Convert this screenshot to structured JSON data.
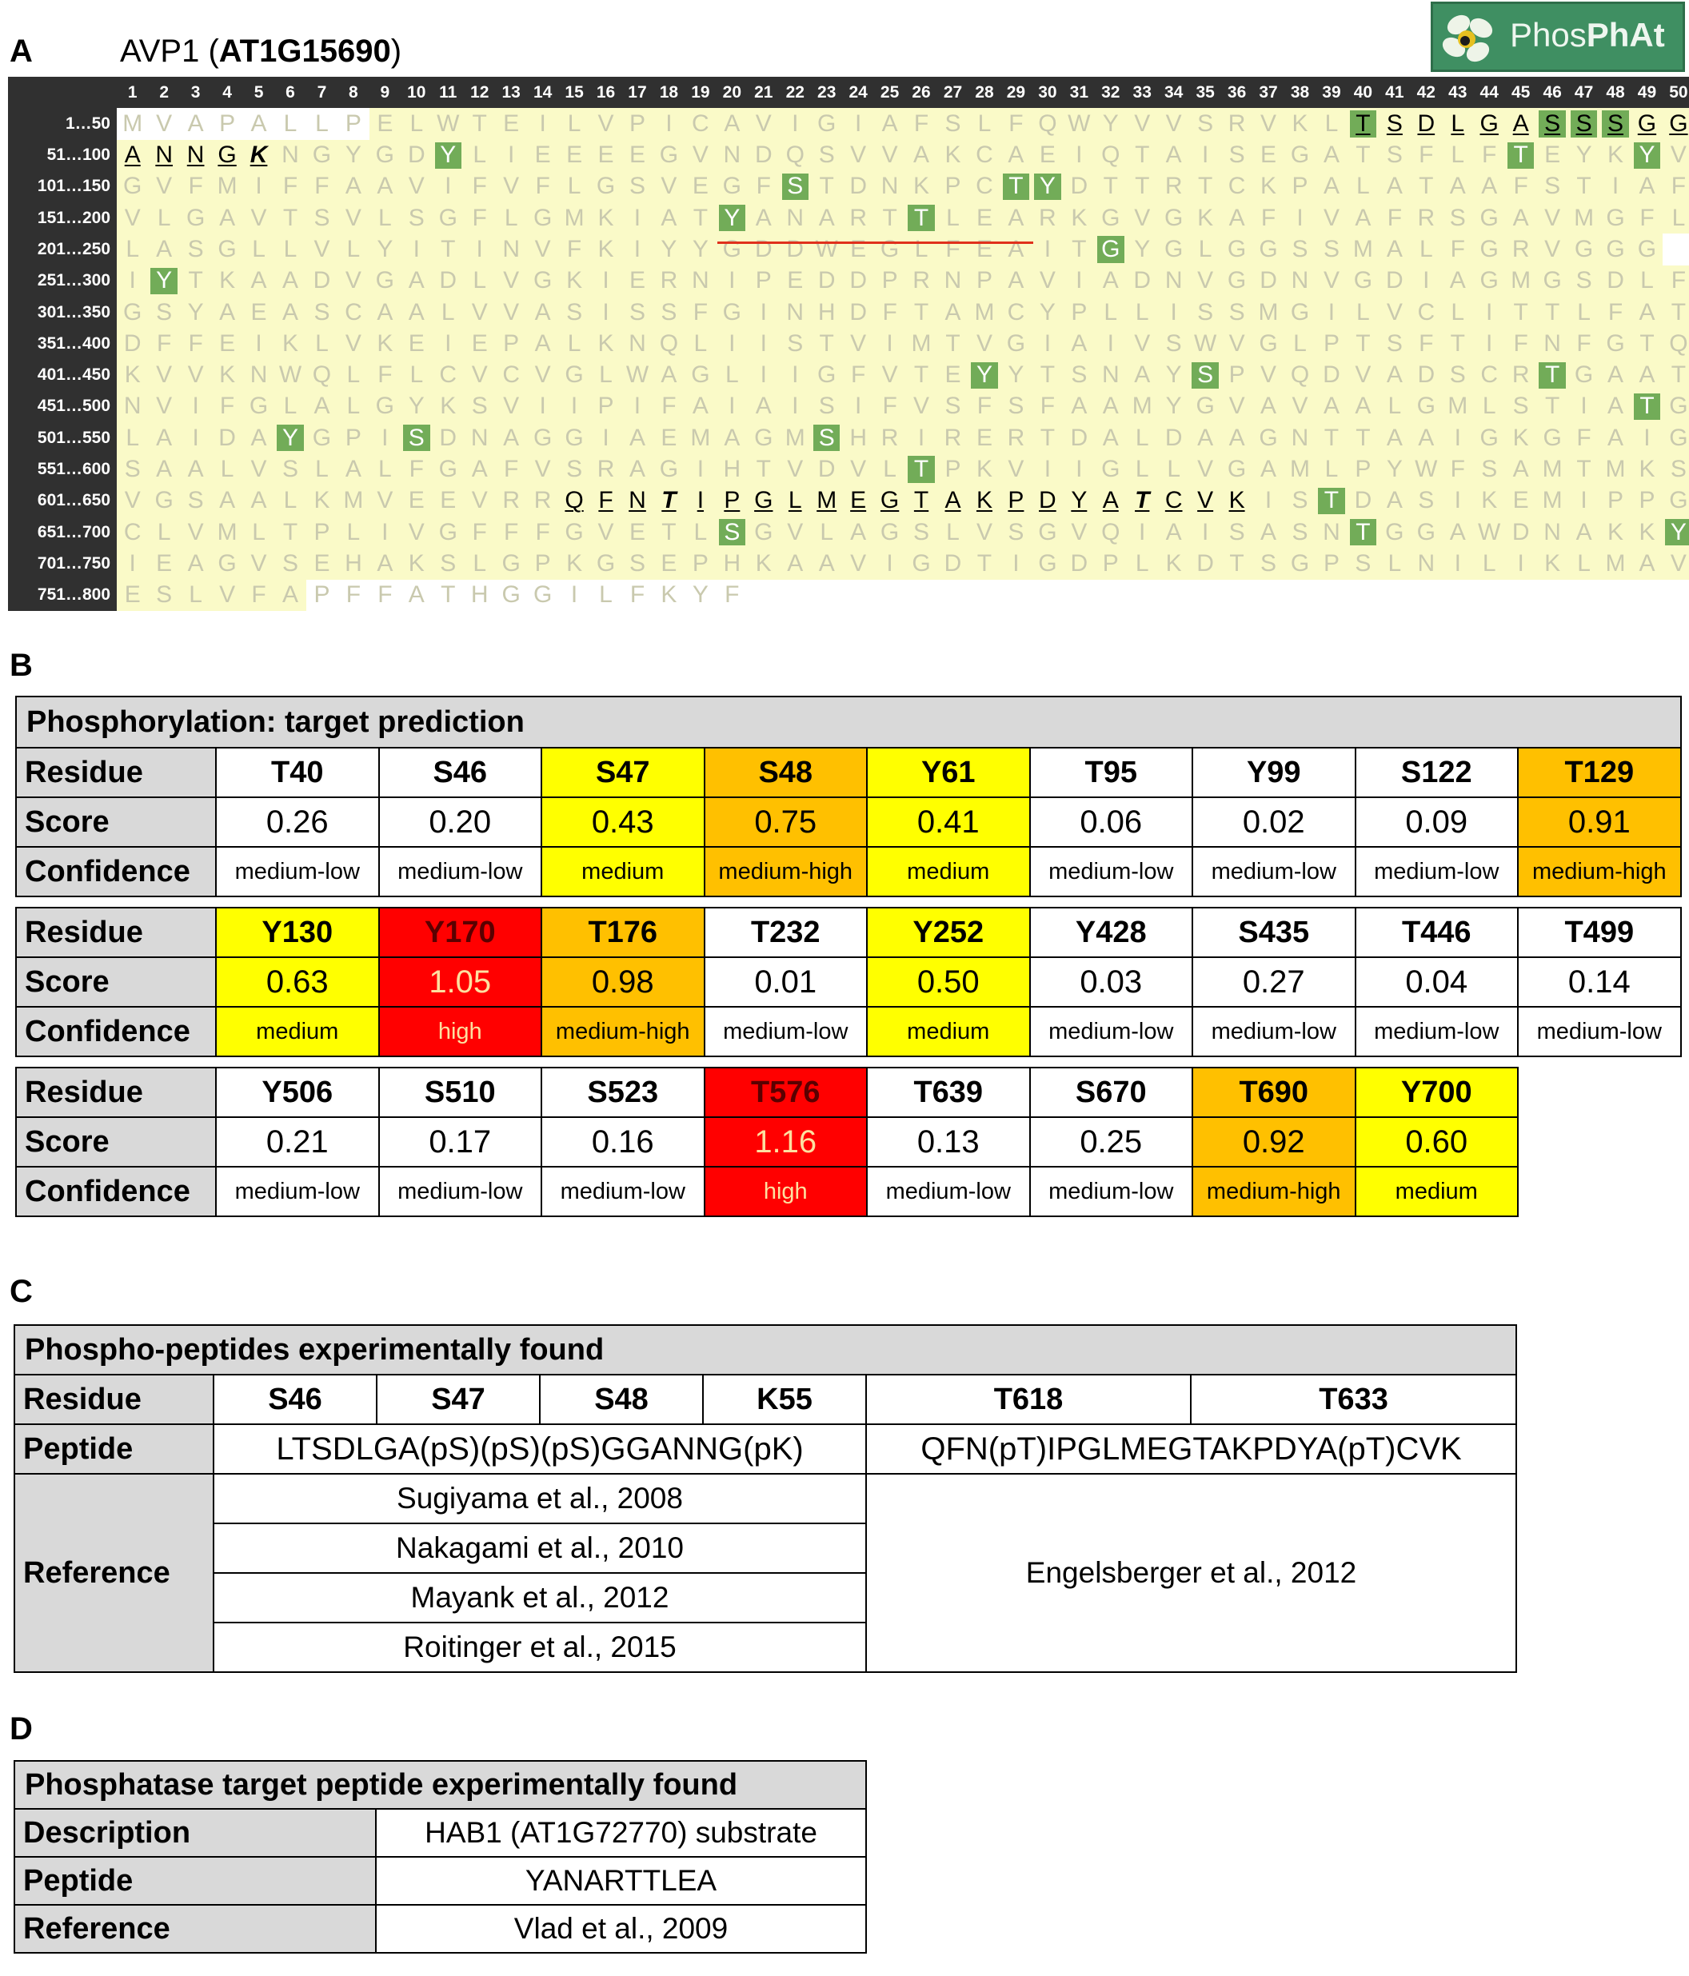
{
  "panels": {
    "a": "A",
    "b": "B",
    "c": "C",
    "d": "D"
  },
  "protein": {
    "name": "AVP1",
    "locus": "AT1G15690"
  },
  "logo": {
    "text_light": "Phos",
    "text_bold": "PhAt"
  },
  "colors": {
    "sequence_region": "#fafac8",
    "phosphosite": "#72ac58",
    "prediction_medium": "#ffff00",
    "prediction_medium_high": "#ffc000",
    "prediction_high": "#ff0000"
  },
  "sequence": {
    "positions": [
      "1",
      "2",
      "3",
      "4",
      "5",
      "6",
      "7",
      "8",
      "9",
      "10",
      "11",
      "12",
      "13",
      "14",
      "15",
      "16",
      "17",
      "18",
      "19",
      "20",
      "21",
      "22",
      "23",
      "24",
      "25",
      "26",
      "27",
      "28",
      "29",
      "30",
      "31",
      "32",
      "33",
      "34",
      "35",
      "36",
      "37",
      "38",
      "39",
      "40",
      "41",
      "42",
      "43",
      "44",
      "45",
      "46",
      "47",
      "48",
      "49",
      "50"
    ],
    "rows": [
      {
        "label": "1…50",
        "seq": "MVAPALLPELWTEILVPICAVIGIAFSLFQWYVVSRVKLTSDLGASSSGG"
      },
      {
        "label": "51…100",
        "seq": "ANNGKNGYGDYLIEEEEGVNDQSVVAKCAEIQTAISEGATSFLFTEYKYV"
      },
      {
        "label": "101…150",
        "seq": "GVFMIFFAAVIFVFLGSVEGFSTDNKPCTYDTTRTCKPALATAAFSTIAF"
      },
      {
        "label": "151…200",
        "seq": "VLGAVTSVLSGFLGMKIATYANARTTLEARKGVGKAFIVAFRSGAVMGFL"
      },
      {
        "label": "201…250",
        "seq": "LASGLLVLYITINVFKIYYGDDWEGLFEAITGYGLGGSSMALFGRVGGG"
      },
      {
        "label": "251…300",
        "seq": "IYTKAADVGADLVGKIERNIPEDDPRNPAVIADNVGDNVGDIAGMGSDLF"
      },
      {
        "label": "301…350",
        "seq": "GSYAEASCAALVVASISSFGINHDFTAMCYPLLISSMGILVCLITTLFAT"
      },
      {
        "label": "351…400",
        "seq": "DFFEIKLVKEIEPALKNQLIISTVIMTVGIAIVSWVGLPTSFTIFNFGTQ"
      },
      {
        "label": "401…450",
        "seq": "KVVKNWQLFLCVCVGLWAGLIIGFVTEYYTSNAYSPVQDVADSCRTGAAT"
      },
      {
        "label": "451…500",
        "seq": "NVIFGLALGYKSVIIPIFAIAISIFVSFSFAAMYGVAVAALGMLSTIATG"
      },
      {
        "label": "501…550",
        "seq": "LAIDAYGPISDNAGGIAEMAGMSHRIRERTDALDAAGNTTAAIGKGFAIG"
      },
      {
        "label": "551…600",
        "seq": "SAALVSLALFGAFVSRAGIHTVDVLTPKVIIGLLVGAMLPYWFSAMTMKS"
      },
      {
        "label": "601…650",
        "seq": "VGSAALKMVEEVRRQFNTIPGLMEGTAKPDYATCVKISTDASIKEMIPPG"
      },
      {
        "label": "651…700",
        "seq": "CLVMLTPLIVGFFFGVETLSGVLAGSLVSGVQIAISASNTGGAWDNAKKY"
      },
      {
        "label": "701…750",
        "seq": "IEAGVSEHAKSLGPKGSEPHKAAVIGDTIGDPLKDTSGPSLNILIKLMAV"
      },
      {
        "label": "751…800",
        "seq": "ESLVFAPFFATHGGILFKYF"
      }
    ]
  },
  "prediction": {
    "title": "Phosphorylation: target prediction",
    "row_labels": [
      "Residue",
      "Score",
      "Confidence"
    ],
    "blocks": [
      [
        {
          "residue": "T40",
          "score": "0.26",
          "confidence": "medium-low",
          "level": "n"
        },
        {
          "residue": "S46",
          "score": "0.20",
          "confidence": "medium-low",
          "level": "n"
        },
        {
          "residue": "S47",
          "score": "0.43",
          "confidence": "medium",
          "level": "y"
        },
        {
          "residue": "S48",
          "score": "0.75",
          "confidence": "medium-high",
          "level": "o"
        },
        {
          "residue": "Y61",
          "score": "0.41",
          "confidence": "medium",
          "level": "y"
        },
        {
          "residue": "T95",
          "score": "0.06",
          "confidence": "medium-low",
          "level": "n"
        },
        {
          "residue": "Y99",
          "score": "0.02",
          "confidence": "medium-low",
          "level": "n"
        },
        {
          "residue": "S122",
          "score": "0.09",
          "confidence": "medium-low",
          "level": "n"
        },
        {
          "residue": "T129",
          "score": "0.91",
          "confidence": "medium-high",
          "level": "o"
        }
      ],
      [
        {
          "residue": "Y130",
          "score": "0.63",
          "confidence": "medium",
          "level": "y"
        },
        {
          "residue": "Y170",
          "score": "1.05",
          "confidence": "high",
          "level": "r"
        },
        {
          "residue": "T176",
          "score": "0.98",
          "confidence": "medium-high",
          "level": "o"
        },
        {
          "residue": "T232",
          "score": "0.01",
          "confidence": "medium-low",
          "level": "n"
        },
        {
          "residue": "Y252",
          "score": "0.50",
          "confidence": "medium",
          "level": "y"
        },
        {
          "residue": "Y428",
          "score": "0.03",
          "confidence": "medium-low",
          "level": "n"
        },
        {
          "residue": "S435",
          "score": "0.27",
          "confidence": "medium-low",
          "level": "n"
        },
        {
          "residue": "T446",
          "score": "0.04",
          "confidence": "medium-low",
          "level": "n"
        },
        {
          "residue": "T499",
          "score": "0.14",
          "confidence": "medium-low",
          "level": "n"
        }
      ],
      [
        {
          "residue": "Y506",
          "score": "0.21",
          "confidence": "medium-low",
          "level": "n"
        },
        {
          "residue": "S510",
          "score": "0.17",
          "confidence": "medium-low",
          "level": "n"
        },
        {
          "residue": "S523",
          "score": "0.16",
          "confidence": "medium-low",
          "level": "n"
        },
        {
          "residue": "T576",
          "score": "1.16",
          "confidence": "high",
          "level": "r"
        },
        {
          "residue": "T639",
          "score": "0.13",
          "confidence": "medium-low",
          "level": "n"
        },
        {
          "residue": "S670",
          "score": "0.25",
          "confidence": "medium-low",
          "level": "n"
        },
        {
          "residue": "T690",
          "score": "0.92",
          "confidence": "medium-high",
          "level": "o"
        },
        {
          "residue": "Y700",
          "score": "0.60",
          "confidence": "medium",
          "level": "y"
        }
      ]
    ]
  },
  "experimental": {
    "title": "Phospho-peptides experimentally found",
    "row_labels": {
      "residue": "Residue",
      "peptide": "Peptide",
      "reference": "Reference"
    },
    "residues": [
      "S46",
      "S47",
      "S48",
      "K55",
      "T618",
      "T633"
    ],
    "peptide1": "LTSDLGA(pS)(pS)(pS)GGANNG(pK)",
    "peptide2": "QFN(pT)IPGLMEGTAKPDYA(pT)CVK",
    "refs1": [
      "Sugiyama et al., 2008",
      "Nakagami et al., 2010",
      "Mayank et al., 2012",
      "Roitinger et al., 2015"
    ],
    "ref2": "Engelsberger et al., 2012"
  },
  "phosphatase": {
    "title": "Phosphatase target peptide experimentally found",
    "rows": [
      {
        "label": "Description",
        "value": "HAB1 (AT1G72770) substrate"
      },
      {
        "label": "Peptide",
        "value": "YANARTTLEA"
      },
      {
        "label": "Reference",
        "value": "Vlad et al., 2009"
      }
    ]
  }
}
